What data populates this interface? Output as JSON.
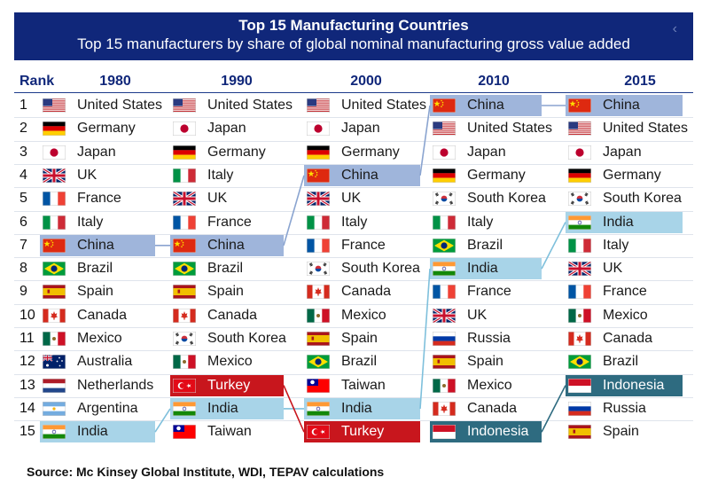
{
  "title": "Top 15 Manufacturing Countries",
  "subtitle": "Top 15 manufacturers by share of global nominal manufacturing gross value added",
  "back_glyph": "‹",
  "rank_header": "Rank",
  "years": [
    "1980",
    "1990",
    "2000",
    "2010",
    "2015"
  ],
  "ranks": [
    "1",
    "2",
    "3",
    "4",
    "5",
    "6",
    "7",
    "8",
    "9",
    "10",
    "11",
    "12",
    "13",
    "14",
    "15"
  ],
  "columns": [
    [
      "United States",
      "Germany",
      "Japan",
      "UK",
      "France",
      "Italy",
      "China",
      "Brazil",
      "Spain",
      "Canada",
      "Mexico",
      "Australia",
      "Netherlands",
      "Argentina",
      "India"
    ],
    [
      "United States",
      "Japan",
      "Germany",
      "Italy",
      "UK",
      "France",
      "China",
      "Brazil",
      "Spain",
      "Canada",
      "South Korea",
      "Mexico",
      "Turkey",
      "India",
      "Taiwan"
    ],
    [
      "United States",
      "Japan",
      "Germany",
      "China",
      "UK",
      "Italy",
      "France",
      "South Korea",
      "Canada",
      "Mexico",
      "Spain",
      "Brazil",
      "Taiwan",
      "India",
      "Turkey"
    ],
    [
      "China",
      "United States",
      "Japan",
      "Germany",
      "South Korea",
      "Italy",
      "Brazil",
      "India",
      "France",
      "UK",
      "Russia",
      "Spain",
      "Mexico",
      "Canada",
      "Indonesia"
    ],
    [
      "China",
      "United States",
      "Japan",
      "Germany",
      "South Korea",
      "India",
      "Italy",
      "UK",
      "France",
      "Mexico",
      "Canada",
      "Brazil",
      "Indonesia",
      "Russia",
      "Spain"
    ]
  ],
  "colors": {
    "header_bg": "#10277a",
    "china_highlight": "#9fb5db",
    "india_highlight": "#a8d4e8",
    "turkey_highlight": "#c8161d",
    "indonesia_highlight": "#2e6b80"
  },
  "source": "Source: Mc Kinsey Global Institute, WDI, TEPAV calculations"
}
